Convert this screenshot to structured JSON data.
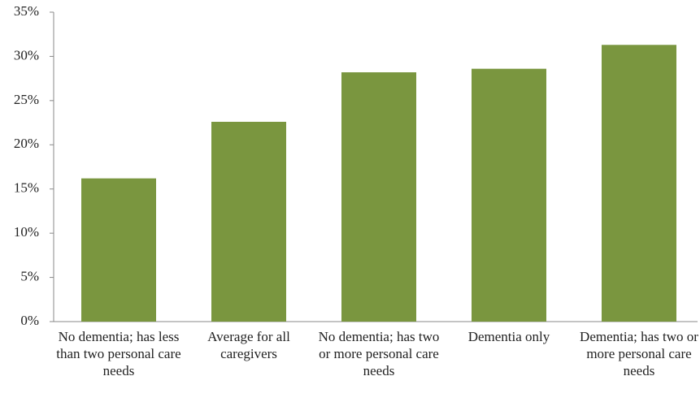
{
  "chart_data": {
    "type": "bar",
    "categories": [
      "No dementia; has less than two personal care needs",
      "Average for all caregivers",
      "No dementia; has two or more personal care needs",
      "Dementia only",
      "Dementia; has two or more personal care needs"
    ],
    "values": [
      16.2,
      22.6,
      28.2,
      28.6,
      31.3
    ],
    "color": "#7a963f",
    "ylim": [
      0,
      35
    ],
    "yticks": [
      {
        "value": 0,
        "label": "0%"
      },
      {
        "value": 5,
        "label": "5%"
      },
      {
        "value": 10,
        "label": "10%"
      },
      {
        "value": 15,
        "label": "15%"
      },
      {
        "value": 20,
        "label": "20%"
      },
      {
        "value": 25,
        "label": "25%"
      },
      {
        "value": 30,
        "label": "30%"
      },
      {
        "value": 35,
        "label": "35%"
      }
    ],
    "grid": false
  }
}
